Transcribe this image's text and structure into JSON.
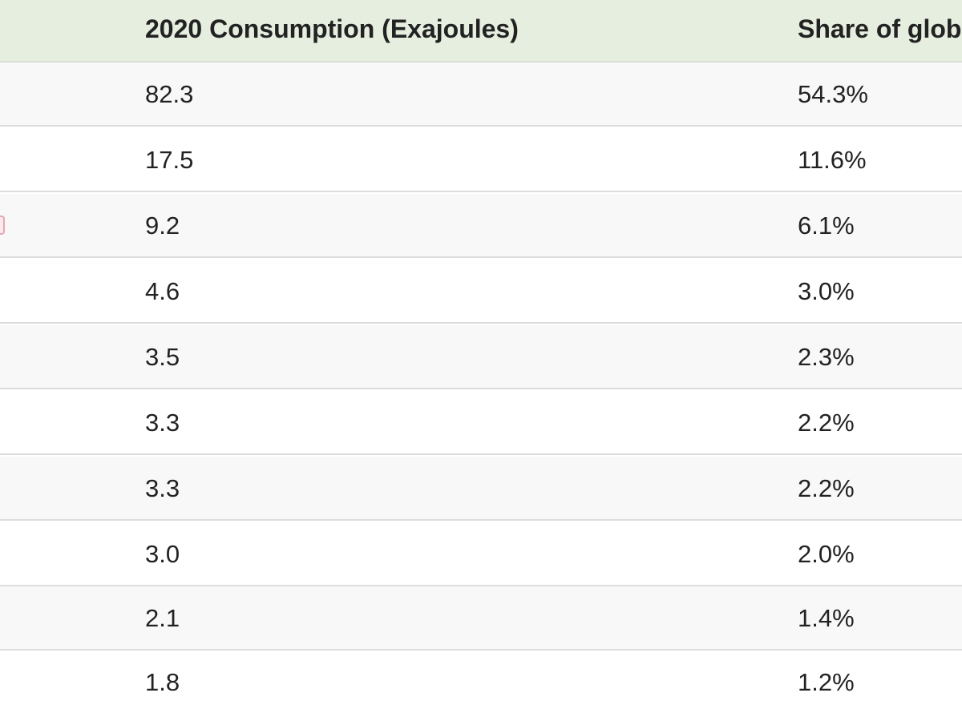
{
  "table": {
    "headers": [
      "2020 Consumption (Exajoules)",
      "Share of glob"
    ],
    "rows": [
      {
        "consumption": "82.3",
        "share": "54.3%"
      },
      {
        "consumption": "17.5",
        "share": "11.6%"
      },
      {
        "consumption": "9.2",
        "share": "6.1%"
      },
      {
        "consumption": "4.6",
        "share": "3.0%"
      },
      {
        "consumption": "3.5",
        "share": "2.3%"
      },
      {
        "consumption": "3.3",
        "share": "2.2%"
      },
      {
        "consumption": "3.3",
        "share": "2.2%"
      },
      {
        "consumption": "3.0",
        "share": "2.0%"
      },
      {
        "consumption": "2.1",
        "share": "1.4%"
      },
      {
        "consumption": "1.8",
        "share": "1.2%"
      }
    ]
  },
  "colors": {
    "header_background": "#e6eedf",
    "row_alt_background": "#f8f8f8",
    "row_divider": "#dcdcdc",
    "text": "#222222"
  }
}
